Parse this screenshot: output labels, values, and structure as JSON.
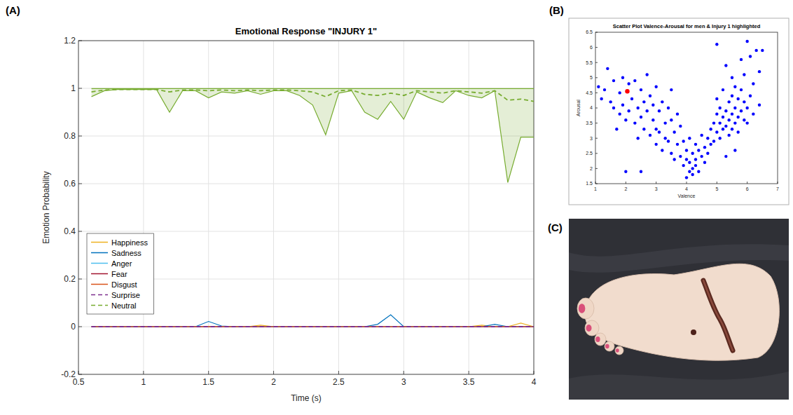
{
  "panels": [
    "(A)",
    "(B)",
    "(C)"
  ],
  "chart_data": [
    {
      "type": "line",
      "title": "Emotional Response \"INJURY 1\"",
      "x_label": "Time (s)",
      "y_label": "Emotion Probability",
      "xlim": [
        0.5,
        4
      ],
      "xticks": [
        0.5,
        1,
        1.5,
        2,
        2.5,
        3,
        3.5,
        4
      ],
      "ylim": [
        -0.2,
        1.2
      ],
      "yticks": [
        -0.2,
        0,
        0.2,
        0.4,
        0.6,
        0.8,
        1,
        1.2
      ],
      "grid": true,
      "legend": "lower left",
      "x": [
        0.6,
        0.7,
        0.8,
        0.9,
        1.0,
        1.1,
        1.2,
        1.3,
        1.4,
        1.5,
        1.6,
        1.7,
        1.8,
        1.9,
        2.0,
        2.1,
        2.2,
        2.3,
        2.4,
        2.5,
        2.6,
        2.7,
        2.8,
        2.9,
        3.0,
        3.1,
        3.2,
        3.3,
        3.4,
        3.5,
        3.6,
        3.7,
        3.8,
        3.9,
        4.0
      ],
      "series": [
        {
          "name": "Happiness",
          "color": "#edb120",
          "line_style": "solid",
          "values": [
            0,
            0,
            0,
            0,
            0,
            0,
            0,
            0,
            0,
            0,
            0,
            0,
            0,
            0.006,
            0,
            0,
            0,
            0,
            0,
            0,
            0,
            0,
            0,
            0,
            0,
            0,
            0,
            0,
            0,
            0,
            0.006,
            0,
            0,
            0.015,
            0
          ]
        },
        {
          "name": "Sadness",
          "color": "#0072bd",
          "line_style": "solid",
          "values": [
            0,
            0,
            0,
            0,
            0,
            0,
            0,
            0,
            0,
            0.022,
            0.003,
            0,
            0,
            0,
            0,
            0,
            0,
            0,
            0,
            0,
            0,
            0,
            0.01,
            0.05,
            0,
            0,
            0,
            0,
            0,
            0,
            0,
            0.01,
            0,
            0,
            0
          ]
        },
        {
          "name": "Anger",
          "color": "#4dbeee",
          "line_style": "solid",
          "values": [
            0,
            0,
            0,
            0,
            0,
            0,
            0,
            0,
            0,
            0,
            0,
            0,
            0,
            0,
            0,
            0,
            0,
            0,
            0,
            0,
            0,
            0,
            0,
            0,
            0,
            0,
            0,
            0,
            0,
            0,
            0,
            0,
            0,
            0,
            0
          ]
        },
        {
          "name": "Fear",
          "color": "#a2142f",
          "line_style": "solid",
          "values": [
            0,
            0,
            0,
            0,
            0,
            0,
            0,
            0,
            0,
            0,
            0,
            0,
            0,
            0,
            0,
            0,
            0,
            0,
            0,
            0,
            0,
            0,
            0,
            0,
            0,
            0,
            0,
            0,
            0,
            0,
            0,
            0,
            0,
            0,
            0
          ]
        },
        {
          "name": "Disgust",
          "color": "#d95319",
          "line_style": "solid",
          "values": [
            0,
            0,
            0,
            0,
            0,
            0,
            0,
            0,
            0,
            0,
            0,
            0,
            0,
            0,
            0,
            0,
            0,
            0,
            0,
            0,
            0,
            0,
            0,
            0,
            0,
            0,
            0,
            0,
            0,
            0,
            0,
            0,
            0,
            0,
            0
          ]
        },
        {
          "name": "Surprise",
          "color": "#7e2f8e",
          "line_style": "dashed",
          "values": [
            0,
            0,
            0,
            0,
            0,
            0,
            0,
            0,
            0,
            0,
            0,
            0,
            0,
            0,
            0,
            0,
            0,
            0,
            0,
            0,
            0,
            0,
            0,
            0,
            0,
            0,
            0,
            0,
            0,
            0,
            0,
            0,
            0,
            0,
            0
          ]
        },
        {
          "name": "Neutral",
          "color": "#77ac30",
          "line_style": "dashed",
          "values": [
            0.985,
            0.993,
            0.995,
            0.995,
            0.995,
            0.995,
            0.985,
            0.993,
            0.993,
            0.99,
            0.993,
            0.99,
            0.993,
            0.99,
            0.993,
            0.993,
            0.99,
            0.985,
            0.965,
            0.99,
            0.993,
            0.975,
            0.97,
            0.98,
            0.97,
            0.99,
            0.985,
            0.98,
            0.99,
            0.985,
            0.98,
            0.99,
            0.95,
            0.955,
            0.945
          ],
          "min": [
            0.965,
            0.99,
            0.995,
            0.995,
            0.995,
            0.995,
            0.9,
            0.99,
            0.99,
            0.96,
            0.985,
            0.98,
            0.99,
            0.975,
            0.99,
            0.99,
            0.97,
            0.93,
            0.805,
            0.98,
            0.99,
            0.9,
            0.87,
            0.945,
            0.87,
            0.985,
            0.96,
            0.94,
            0.99,
            0.97,
            0.96,
            0.99,
            0.605,
            0.795,
            0.795
          ],
          "max": [
            0.999,
            0.999,
            0.999,
            0.999,
            0.999,
            0.999,
            0.999,
            0.999,
            0.999,
            0.999,
            0.999,
            0.999,
            0.999,
            0.999,
            0.999,
            0.999,
            0.999,
            0.999,
            0.999,
            0.999,
            0.999,
            0.999,
            0.999,
            0.999,
            0.999,
            0.999,
            0.999,
            0.999,
            0.999,
            0.999,
            0.999,
            0.999,
            0.999,
            0.999,
            0.999
          ]
        }
      ]
    },
    {
      "type": "scatter",
      "title": "Scatter Plot Valence-Arousal for men & Injury 1 highlighted",
      "x_label": "Valence",
      "y_label": "Arousal",
      "xlim": [
        1,
        7
      ],
      "xticks": [
        1,
        2,
        3,
        4,
        5,
        6,
        7
      ],
      "ylim": [
        1.5,
        6.5
      ],
      "yticks": [
        1.5,
        2,
        2.5,
        3,
        3.5,
        4,
        4.5,
        5,
        5.5,
        6,
        6.5
      ],
      "grid": false,
      "series": [
        {
          "color": "#0000ff",
          "marker": "circle",
          "x": [
            1.1,
            1.2,
            1.3,
            1.4,
            1.5,
            1.6,
            1.6,
            1.7,
            1.8,
            1.8,
            1.9,
            1.9,
            2.0,
            2.0,
            2.1,
            2.1,
            2.2,
            2.3,
            2.3,
            2.4,
            2.4,
            2.5,
            2.5,
            2.5,
            2.6,
            2.6,
            2.7,
            2.7,
            2.8,
            2.8,
            2.9,
            2.9,
            3.0,
            3.0,
            3.0,
            3.1,
            3.1,
            3.2,
            3.2,
            3.3,
            3.3,
            3.4,
            3.4,
            3.5,
            3.5,
            3.5,
            3.6,
            3.6,
            3.7,
            3.7,
            3.8,
            3.8,
            3.9,
            3.9,
            4.0,
            4.0,
            4.0,
            4.1,
            4.1,
            4.1,
            4.2,
            4.2,
            4.2,
            4.3,
            4.3,
            4.3,
            4.4,
            4.4,
            4.5,
            4.5,
            4.6,
            4.6,
            4.7,
            4.7,
            4.8,
            4.8,
            4.9,
            4.9,
            5.0,
            5.0,
            5.0,
            5.0,
            5.1,
            5.1,
            5.1,
            5.2,
            5.2,
            5.2,
            5.3,
            5.3,
            5.3,
            5.4,
            5.4,
            5.4,
            5.5,
            5.5,
            5.5,
            5.5,
            5.6,
            5.6,
            5.6,
            5.7,
            5.7,
            5.7,
            5.8,
            5.8,
            5.8,
            5.9,
            5.9,
            5.9,
            6.0,
            6.0,
            6.0,
            6.1,
            6.1,
            6.2,
            6.2,
            6.3,
            6.4,
            6.4,
            5.6,
            5.3,
            6.5
          ],
          "values": [
            4.7,
            4.3,
            4.6,
            5.3,
            4.2,
            4.9,
            4.0,
            3.3,
            4.5,
            3.8,
            5.0,
            4.1,
            3.6,
            1.9,
            4.8,
            3.9,
            4.3,
            3.5,
            4.9,
            4.0,
            3.0,
            4.6,
            3.7,
            1.9,
            4.2,
            3.3,
            5.1,
            3.9,
            4.4,
            3.1,
            3.6,
            4.1,
            3.3,
            4.7,
            2.8,
            3.9,
            3.2,
            4.2,
            2.6,
            3.5,
            3.0,
            4.0,
            2.9,
            3.6,
            2.5,
            4.6,
            3.2,
            2.3,
            3.8,
            2.8,
            2.4,
            3.4,
            2.1,
            2.9,
            1.7,
            2.3,
            2.6,
            1.9,
            2.2,
            3.0,
            2.0,
            2.5,
            1.8,
            2.3,
            2.8,
            2.1,
            2.6,
            1.9,
            2.4,
            3.1,
            2.7,
            2.2,
            3.0,
            2.5,
            3.3,
            2.8,
            3.5,
            2.9,
            3.2,
            3.8,
            4.3,
            6.1,
            3.5,
            3.0,
            4.0,
            3.7,
            4.6,
            3.3,
            3.9,
            3.4,
            5.4,
            3.6,
            4.2,
            3.1,
            3.8,
            4.4,
            3.3,
            5.0,
            4.0,
            3.5,
            4.7,
            3.7,
            4.3,
            3.2,
            3.9,
            4.6,
            5.6,
            3.6,
            4.2,
            5.1,
            4.0,
            3.5,
            6.2,
            4.4,
            5.7,
            4.8,
            3.8,
            5.9,
            5.2,
            4.1,
            2.6,
            2.4,
            5.9
          ]
        },
        {
          "color": "#ff0000",
          "marker": "circle",
          "x": [
            2.05
          ],
          "values": [
            4.55
          ]
        }
      ]
    }
  ]
}
